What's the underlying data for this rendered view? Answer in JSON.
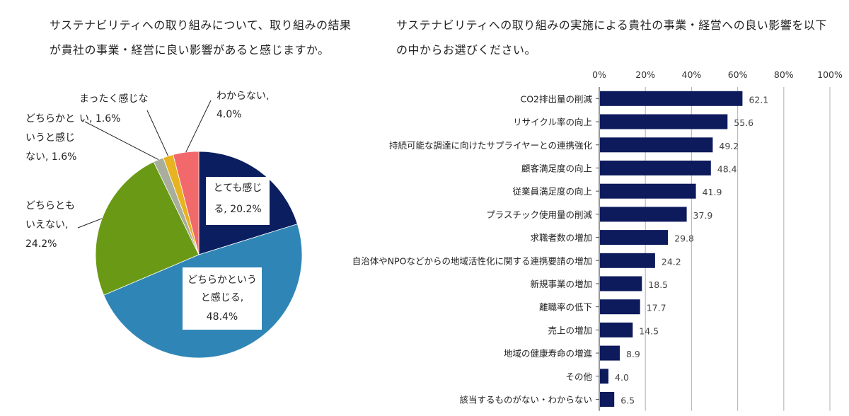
{
  "left_title": "サステナビリティへの取り組みについて、取り組みの結果が貴社の事業・経営に良い影響があると感じますか。",
  "right_title": "サステナビリティへの取り組みの実施による貴社の事業・経営への良い影響を以下の中からお選びください。",
  "chart_data": [
    {
      "type": "pie",
      "title": "",
      "labels": [
        "とても感じる",
        "どちらかというと感じる",
        "どちらともいえない",
        "どちらかというと感じない",
        "まったく感じない",
        "わからない"
      ],
      "values": [
        20.2,
        48.4,
        24.2,
        1.6,
        1.6,
        4.0
      ],
      "value_suffix": "%",
      "display_lines": [
        [
          "とても感じ",
          "る, 20.2%"
        ],
        [
          "どちらかという",
          "と感じる,",
          "48.4%"
        ],
        [
          "どちらとも",
          "いえない,",
          "24.2%"
        ],
        [
          "どちらかと",
          "いうと感じ",
          "ない, 1.6%"
        ],
        [
          "まったく感じな",
          "い, 1.6%"
        ],
        [
          "わからない,",
          "4.0%"
        ]
      ],
      "colors": [
        "#0b1f60",
        "#2f86b6",
        "#6a9a15",
        "#a9ad9b",
        "#e8b321",
        "#f2696b"
      ],
      "start_angle_deg": 0,
      "direction": "clockwise"
    },
    {
      "type": "bar",
      "orientation": "horizontal",
      "title": "",
      "categories": [
        "CO2排出量の削減",
        "リサイクル率の向上",
        "持続可能な調達に向けたサプライヤーとの連携強化",
        "顧客満足度の向上",
        "従業員満足度の向上",
        "プラスチック使用量の削減",
        "求職者数の増加",
        "自治体やNPOなどからの地域活性化に関する連携要請の増加",
        "新規事業の増加",
        "離職率の低下",
        "売上の増加",
        "地域の健康寿命の増進",
        "その他",
        "該当するものがない・わからない"
      ],
      "values": [
        62.1,
        55.6,
        49.2,
        48.4,
        41.9,
        37.9,
        29.8,
        24.2,
        18.5,
        17.7,
        14.5,
        8.9,
        4.0,
        6.5
      ],
      "value_labels": [
        "62.1",
        "55.6",
        "49.2",
        "48.4",
        "41.9",
        "37.9",
        "29.8",
        "24.2",
        "18.5",
        "17.7",
        "14.5",
        "8.9",
        "4.0",
        "6.5"
      ],
      "xlim": [
        0,
        100
      ],
      "x_ticks": [
        "0%",
        "20%",
        "40%",
        "60%",
        "80%",
        "100%"
      ],
      "grid": true,
      "bar_color": "#0d1a5c"
    }
  ]
}
